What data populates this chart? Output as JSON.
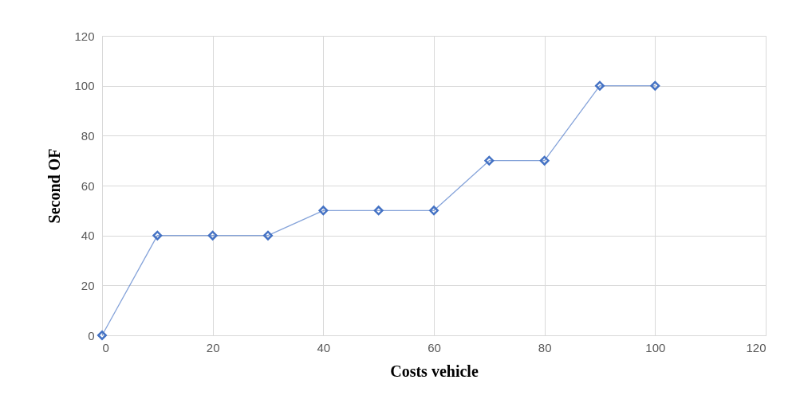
{
  "chart_data": {
    "type": "line",
    "xlabel": "Costs vehicle",
    "ylabel": "Second OF",
    "x": [
      0,
      10,
      20,
      30,
      40,
      50,
      60,
      70,
      80,
      90,
      100
    ],
    "series": [
      {
        "color": "#4472c4",
        "values": [
          0,
          40,
          40,
          40,
          50,
          50,
          50,
          70,
          70,
          100,
          100
        ]
      }
    ],
    "xlim": [
      0,
      120
    ],
    "xticks": [
      0,
      20,
      40,
      60,
      80,
      100,
      120
    ],
    "ylim": [
      0,
      120
    ],
    "yticks": [
      0,
      20,
      40,
      60,
      80,
      100,
      120
    ],
    "grid": true,
    "marker": "diamond",
    "line_style": "solid"
  }
}
